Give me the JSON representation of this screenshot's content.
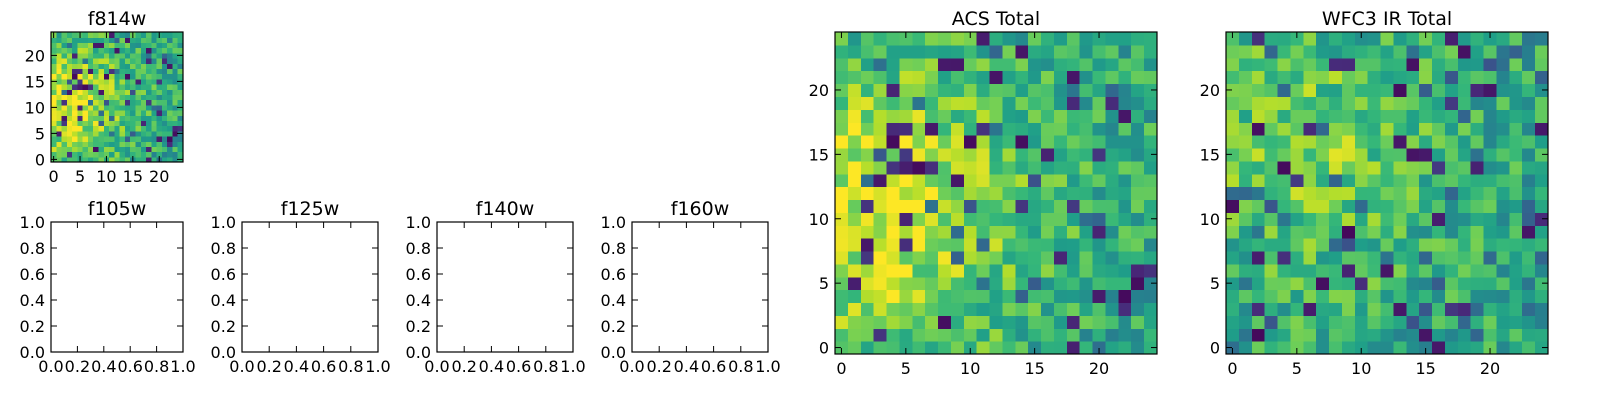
{
  "chart_data": [
    {
      "type": "heatmap",
      "title": "f814w",
      "shape": [
        25,
        25
      ],
      "xlim": [
        -0.5,
        24.5
      ],
      "ylim": [
        -0.5,
        24.5
      ],
      "xticks": [
        0,
        5,
        10,
        15,
        20
      ],
      "yticks": [
        0,
        5,
        10,
        15,
        20
      ],
      "xticklabels": [
        "0",
        "5",
        "10",
        "15",
        "20"
      ],
      "yticklabels": [
        "0",
        "5",
        "10",
        "15",
        "20"
      ],
      "origin": "lower",
      "colormap": "viridis",
      "value_range": [
        0,
        1
      ],
      "seed": 11,
      "hotspot": {
        "center": [
          3,
          11
        ],
        "spread": 8,
        "strength": 0.35
      },
      "dark_pixel_fraction": 0.05
    },
    {
      "type": "heatmap",
      "title": "f105w",
      "empty": true,
      "xlim": [
        0,
        1
      ],
      "ylim": [
        0,
        1
      ],
      "xticklabels": [
        "0.0",
        "0.2",
        "0.4",
        "0.6",
        "0.8",
        "1.0"
      ],
      "yticklabels": [
        "0.0",
        "0.2",
        "0.4",
        "0.6",
        "0.8",
        "1.0"
      ]
    },
    {
      "type": "heatmap",
      "title": "f125w",
      "empty": true,
      "xlim": [
        0,
        1
      ],
      "ylim": [
        0,
        1
      ],
      "xticklabels": [
        "0.0",
        "0.2",
        "0.4",
        "0.6",
        "0.8",
        "1.0"
      ],
      "yticklabels": [
        "0.0",
        "0.2",
        "0.4",
        "0.6",
        "0.8",
        "1.0"
      ]
    },
    {
      "type": "heatmap",
      "title": "f140w",
      "empty": true,
      "xlim": [
        0,
        1
      ],
      "ylim": [
        0,
        1
      ],
      "xticklabels": [
        "0.0",
        "0.2",
        "0.4",
        "0.6",
        "0.8",
        "1.0"
      ],
      "yticklabels": [
        "0.0",
        "0.2",
        "0.4",
        "0.6",
        "0.8",
        "1.0"
      ]
    },
    {
      "type": "heatmap",
      "title": "f160w",
      "empty": true,
      "xlim": [
        0,
        1
      ],
      "ylim": [
        0,
        1
      ],
      "xticklabels": [
        "0.0",
        "0.2",
        "0.4",
        "0.6",
        "0.8",
        "1.0"
      ],
      "yticklabels": [
        "0.0",
        "0.2",
        "0.4",
        "0.6",
        "0.8",
        "1.0"
      ]
    },
    {
      "type": "heatmap",
      "title": "ACS Total",
      "shape": [
        25,
        25
      ],
      "xlim": [
        -0.5,
        24.5
      ],
      "ylim": [
        -0.5,
        24.5
      ],
      "xticks": [
        0,
        5,
        10,
        15,
        20
      ],
      "yticks": [
        0,
        5,
        10,
        15,
        20
      ],
      "xticklabels": [
        "0",
        "5",
        "10",
        "15",
        "20"
      ],
      "yticklabels": [
        "0",
        "5",
        "10",
        "15",
        "20"
      ],
      "origin": "lower",
      "colormap": "viridis",
      "value_range": [
        0,
        1
      ],
      "seed": 11,
      "hotspot": {
        "center": [
          3,
          11
        ],
        "spread": 8,
        "strength": 0.35
      },
      "dark_pixel_fraction": 0.05
    },
    {
      "type": "heatmap",
      "title": "WFC3 IR Total",
      "shape": [
        25,
        25
      ],
      "xlim": [
        -0.5,
        24.5
      ],
      "ylim": [
        -0.5,
        24.5
      ],
      "xticks": [
        0,
        5,
        10,
        15,
        20
      ],
      "yticks": [
        0,
        5,
        10,
        15,
        20
      ],
      "xticklabels": [
        "0",
        "5",
        "10",
        "15",
        "20"
      ],
      "yticklabels": [
        "0",
        "5",
        "10",
        "15",
        "20"
      ],
      "origin": "lower",
      "colormap": "viridis",
      "value_range": [
        0,
        1
      ],
      "seed": 37,
      "hotspot": {
        "center": [
          6,
          15
        ],
        "spread": 7,
        "strength": 0.2
      },
      "dark_pixel_fraction": 0.06
    }
  ]
}
